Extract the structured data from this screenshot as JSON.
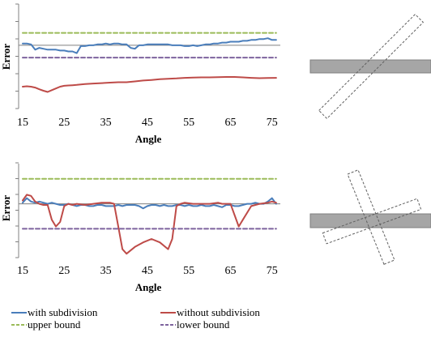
{
  "colors": {
    "with_subdivision": "#4a7ebb",
    "without_subdivision": "#be4b48",
    "upper_bound": "#9bbb59",
    "lower_bound": "#7e649e",
    "axis": "#808080",
    "reference_line": "#7f7f7f",
    "rect_fill": "#a6a6a6",
    "rect_stroke": "#7f7f7f",
    "dashed_rect_stroke": "#606060"
  },
  "legend": {
    "with_subdivision": "with subdivision",
    "without_subdivision": "without subdivision",
    "upper_bound": "upper bound",
    "lower_bound": "lower bound"
  },
  "chart_data": [
    {
      "type": "line",
      "ylabel": "Error",
      "xlabel": "Angle",
      "xlim": [
        15,
        77
      ],
      "ylim": [
        -3.5,
        2.2
      ],
      "y_ticks_shown": false,
      "x_ticks": [
        15,
        25,
        35,
        45,
        55,
        65,
        75
      ],
      "x_tick_labels": [
        "15",
        "25",
        "35",
        "45",
        "55",
        "65",
        "75"
      ],
      "reference_line_y": 0,
      "series": [
        {
          "name": "with subdivision",
          "x": [
            15,
            16,
            17,
            18,
            19,
            20,
            21,
            22,
            23,
            24,
            25,
            26,
            27,
            28,
            29,
            30,
            31,
            32,
            33,
            34,
            35,
            36,
            37,
            38,
            39,
            40,
            41,
            42,
            43,
            44,
            45,
            46,
            47,
            48,
            49,
            50,
            51,
            52,
            53,
            54,
            55,
            56,
            57,
            58,
            59,
            60,
            61,
            62,
            63,
            64,
            65,
            66,
            67,
            68,
            69,
            70,
            71,
            72,
            73,
            74,
            75,
            76
          ],
          "values": [
            0.1,
            0.1,
            0.05,
            -0.25,
            -0.15,
            -0.2,
            -0.25,
            -0.25,
            -0.25,
            -0.3,
            -0.3,
            -0.35,
            -0.35,
            -0.45,
            -0.05,
            -0.05,
            0.0,
            0.0,
            0.05,
            0.05,
            0.1,
            0.05,
            0.1,
            0.1,
            0.05,
            0.05,
            -0.15,
            -0.2,
            0.0,
            0.0,
            0.05,
            0.05,
            0.05,
            0.05,
            0.05,
            0.05,
            0.0,
            0.0,
            0.0,
            -0.05,
            -0.05,
            0.0,
            -0.05,
            0.0,
            0.05,
            0.05,
            0.1,
            0.1,
            0.15,
            0.15,
            0.2,
            0.2,
            0.2,
            0.25,
            0.25,
            0.3,
            0.3,
            0.35,
            0.35,
            0.4,
            0.3,
            0.3
          ]
        },
        {
          "name": "without subdivision",
          "x": [
            15,
            16,
            17,
            18,
            19,
            20,
            21,
            22,
            23,
            24,
            25,
            26,
            27,
            28,
            30,
            32,
            34,
            36,
            38,
            40,
            42,
            44,
            46,
            48,
            50,
            52,
            54,
            56,
            58,
            60,
            62,
            64,
            66,
            68,
            70,
            72,
            74,
            76
          ],
          "values": [
            -2.35,
            -2.33,
            -2.35,
            -2.4,
            -2.5,
            -2.58,
            -2.65,
            -2.55,
            -2.45,
            -2.35,
            -2.3,
            -2.28,
            -2.27,
            -2.25,
            -2.2,
            -2.17,
            -2.15,
            -2.12,
            -2.1,
            -2.1,
            -2.05,
            -2.0,
            -1.97,
            -1.93,
            -1.9,
            -1.88,
            -1.85,
            -1.83,
            -1.82,
            -1.82,
            -1.81,
            -1.8,
            -1.8,
            -1.82,
            -1.85,
            -1.87,
            -1.86,
            -1.85
          ]
        },
        {
          "name": "upper bound",
          "x": [
            15,
            76
          ],
          "values": [
            0.7,
            0.7
          ]
        },
        {
          "name": "lower bound",
          "x": [
            15,
            76
          ],
          "values": [
            -0.7,
            -0.7
          ]
        }
      ]
    },
    {
      "type": "line",
      "ylabel": "Error",
      "xlabel": "Angle",
      "xlim": [
        15,
        77
      ],
      "ylim": [
        -2.3,
        1.7
      ],
      "y_ticks_shown": false,
      "x_ticks": [
        15,
        25,
        35,
        45,
        55,
        65,
        75
      ],
      "x_tick_labels": [
        "15",
        "25",
        "35",
        "45",
        "55",
        "65",
        "75"
      ],
      "reference_line_y": 0,
      "series": [
        {
          "name": "with subdivision",
          "x": [
            15,
            16,
            17,
            18,
            19,
            20,
            21,
            22,
            23,
            24,
            25,
            26,
            27,
            28,
            29,
            30,
            31,
            32,
            33,
            34,
            35,
            36,
            37,
            38,
            39,
            40,
            41,
            42,
            43,
            44,
            45,
            46,
            47,
            48,
            49,
            50,
            51,
            52,
            53,
            54,
            55,
            56,
            57,
            58,
            59,
            60,
            61,
            62,
            63,
            64,
            65,
            66,
            67,
            68,
            69,
            70,
            71,
            72,
            73,
            74,
            75,
            76
          ],
          "values": [
            0.05,
            0.25,
            0.1,
            0.05,
            0.1,
            0.05,
            0.0,
            0.05,
            0.0,
            -0.05,
            -0.05,
            0.0,
            -0.05,
            -0.1,
            -0.05,
            -0.05,
            -0.1,
            -0.1,
            -0.05,
            -0.05,
            -0.1,
            -0.1,
            -0.1,
            -0.05,
            -0.1,
            -0.05,
            -0.05,
            -0.05,
            -0.1,
            -0.2,
            -0.1,
            -0.05,
            -0.05,
            -0.1,
            -0.05,
            -0.1,
            -0.1,
            -0.05,
            -0.05,
            -0.1,
            -0.05,
            -0.1,
            -0.1,
            -0.05,
            -0.1,
            -0.1,
            -0.05,
            -0.1,
            -0.15,
            -0.05,
            -0.05,
            -0.1,
            -0.1,
            -0.05,
            0.0,
            0.0,
            0.05,
            0.0,
            0.0,
            0.1,
            0.25,
            0.0
          ]
        },
        {
          "name": "without subdivision",
          "x": [
            15,
            16,
            17,
            18,
            19,
            20,
            21,
            22,
            23,
            24,
            25,
            26,
            27,
            28,
            30,
            32,
            34,
            36,
            37,
            38,
            39,
            40,
            42,
            44,
            46,
            48,
            50,
            51,
            52,
            53,
            54,
            56,
            58,
            60,
            62,
            63,
            64,
            65,
            66,
            67,
            68,
            70,
            72,
            74,
            75,
            76
          ],
          "values": [
            0.15,
            0.4,
            0.35,
            0.1,
            0.0,
            -0.05,
            -0.05,
            -0.7,
            -1.0,
            -0.8,
            -0.1,
            0.0,
            -0.05,
            0.0,
            -0.05,
            0.0,
            0.05,
            0.05,
            0.0,
            -1.0,
            -2.0,
            -2.2,
            -1.9,
            -1.7,
            -1.55,
            -1.7,
            -2.0,
            -1.55,
            -0.1,
            0.0,
            0.05,
            0.0,
            0.0,
            0.0,
            0.05,
            0.0,
            0.0,
            0.0,
            -0.5,
            -1.0,
            -0.7,
            -0.1,
            0.0,
            0.05,
            0.1,
            0.05
          ]
        },
        {
          "name": "upper bound",
          "x": [
            15,
            76
          ],
          "values": [
            1.1,
            1.1
          ]
        },
        {
          "name": "lower bound",
          "x": [
            15,
            76
          ],
          "values": [
            -1.1,
            -1.1
          ]
        }
      ]
    }
  ]
}
